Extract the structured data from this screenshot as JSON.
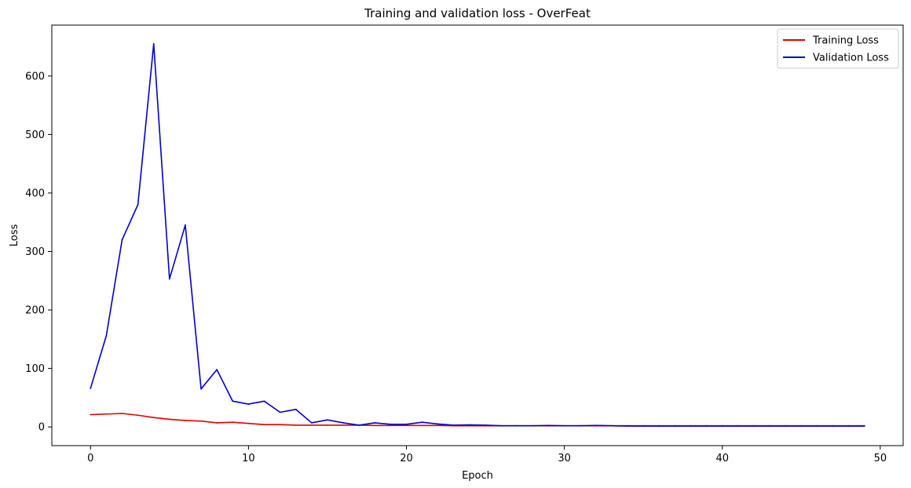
{
  "chart_data": {
    "type": "line",
    "title": "Training and validation loss - OverFeat",
    "xlabel": "Epoch",
    "ylabel": "Loss",
    "xlim": [
      -2.45,
      51.45
    ],
    "ylim": [
      -32,
      687
    ],
    "xticks": [
      0,
      10,
      20,
      30,
      40,
      50
    ],
    "yticks": [
      0,
      100,
      200,
      300,
      400,
      500,
      600
    ],
    "grid": false,
    "legend_position": "top-right",
    "x": [
      0,
      1,
      2,
      3,
      4,
      5,
      6,
      7,
      8,
      9,
      10,
      11,
      12,
      13,
      14,
      15,
      16,
      17,
      18,
      19,
      20,
      21,
      22,
      23,
      24,
      25,
      26,
      27,
      28,
      29,
      30,
      31,
      32,
      33,
      34,
      35,
      36,
      37,
      38,
      39,
      40,
      41,
      42,
      43,
      44,
      45,
      46,
      47,
      48,
      49
    ],
    "series": [
      {
        "name": "Training Loss",
        "color": "#e00000",
        "values": [
          21,
          22,
          23,
          20,
          16,
          13,
          11,
          10,
          7,
          8,
          6,
          4,
          4,
          3,
          3,
          3,
          3,
          3,
          2.5,
          2.5,
          2.5,
          2.5,
          2.5,
          2,
          2,
          2,
          2,
          2,
          2,
          2,
          2,
          2,
          2,
          2,
          2,
          2,
          2,
          2,
          2,
          2,
          2,
          2,
          2,
          2,
          2,
          2,
          2,
          2,
          2,
          2
        ]
      },
      {
        "name": "Validation Loss",
        "color": "#0000cc",
        "values": [
          66,
          156,
          320,
          380,
          655,
          253,
          345,
          65,
          98,
          44,
          39,
          44,
          25,
          30,
          7,
          12,
          7,
          3,
          7,
          4.5,
          4.5,
          8,
          5,
          3,
          3.5,
          3,
          2,
          2,
          2,
          2.5,
          2,
          2,
          2.5,
          2,
          1.5,
          1.5,
          1.5,
          1.5,
          1.5,
          1.5,
          1.5,
          1.5,
          1.5,
          1.5,
          1.5,
          1.5,
          1.5,
          1.5,
          1.5,
          1.5
        ]
      }
    ]
  }
}
